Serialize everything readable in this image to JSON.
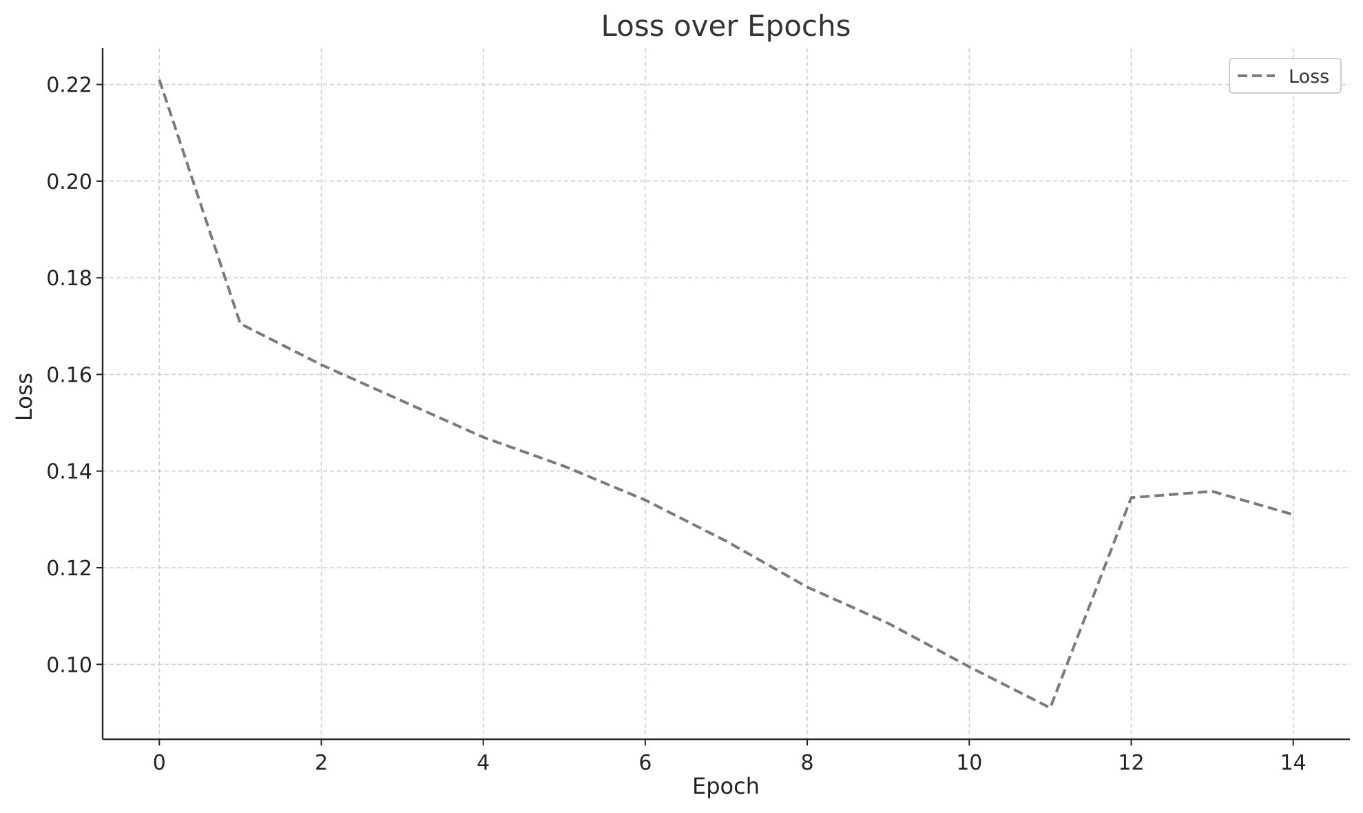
{
  "chart_data": {
    "type": "line",
    "title": "Loss over Epochs",
    "xlabel": "Epoch",
    "ylabel": "Loss",
    "xlim": [
      -0.7,
      14.7
    ],
    "ylim": [
      0.0845,
      0.2275
    ],
    "xticks": [
      0,
      2,
      4,
      6,
      8,
      10,
      12,
      14
    ],
    "yticks": [
      0.1,
      0.12,
      0.14,
      0.16,
      0.18,
      0.2,
      0.22
    ],
    "grid": true,
    "legend_position": "top-right",
    "series": [
      {
        "name": "Loss",
        "color": "#7a7a7a",
        "line_style": "dashed",
        "x": [
          0,
          1,
          2,
          3,
          4,
          5,
          6,
          7,
          8,
          9,
          10,
          11,
          12,
          13,
          14
        ],
        "y": [
          0.221,
          0.1705,
          0.162,
          0.1545,
          0.147,
          0.141,
          0.134,
          0.1255,
          0.116,
          0.1085,
          0.0995,
          0.091,
          0.1345,
          0.1358,
          0.131
        ]
      }
    ]
  }
}
